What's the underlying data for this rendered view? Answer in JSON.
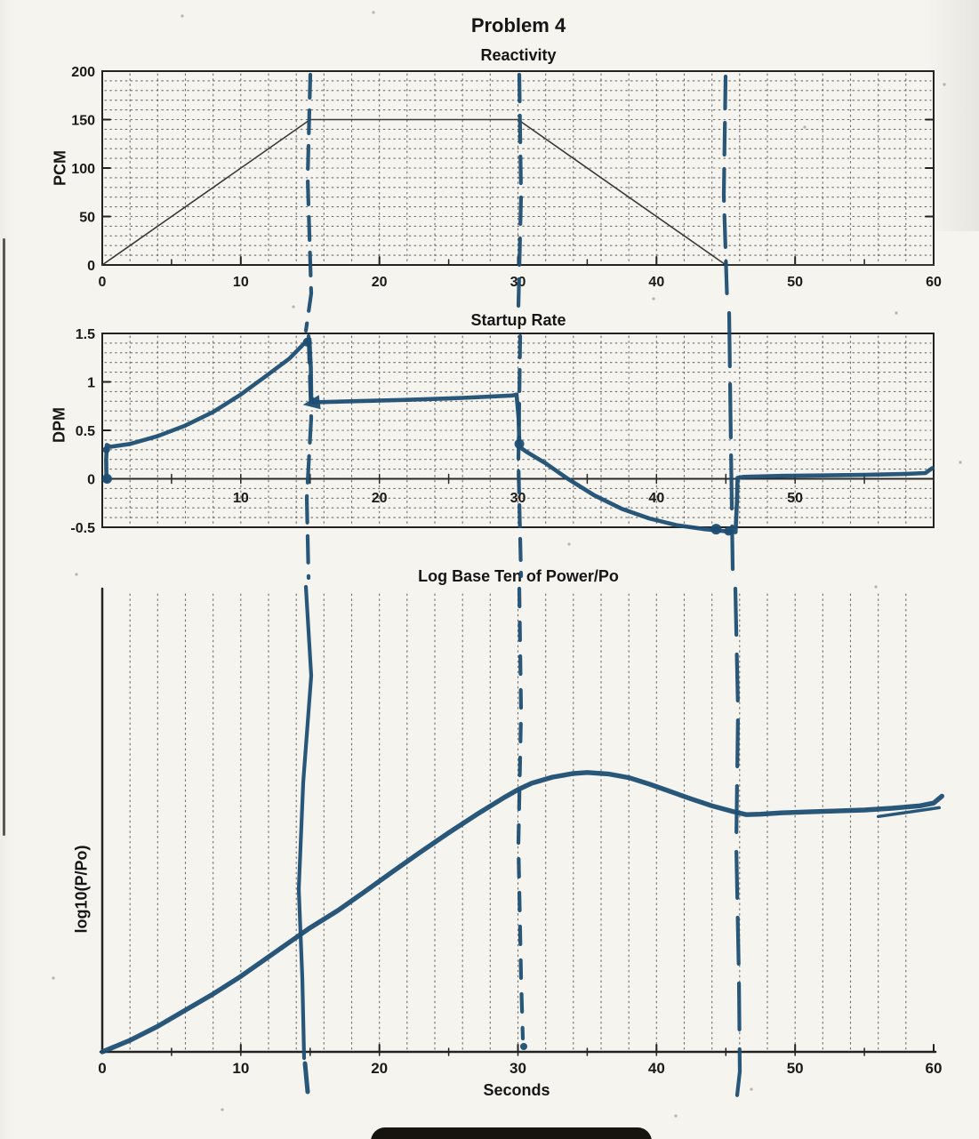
{
  "page": {
    "title": "Problem 4"
  },
  "colors": {
    "paper": "#f6f4ef",
    "print_ink": "#1f1f1f",
    "grid_dots": "#4c4c4c",
    "marker_blue": "#1d4e73",
    "footer_bar": "#17130f"
  },
  "footer": {
    "bar_visible": true
  },
  "chart_data": [
    {
      "type": "line",
      "title": "Reactivity",
      "ylabel": "PCM",
      "xlabel": "",
      "xlim": [
        0,
        60
      ],
      "ylim": [
        0,
        200
      ],
      "xticks": [
        0,
        10,
        20,
        30,
        40,
        50,
        60
      ],
      "yticks": [
        0,
        50,
        100,
        150,
        200
      ],
      "grid": "dotted: vertical every 2 s, horizontal every 10 PCM; full box frame",
      "series": [
        {
          "name": "reactivity-ramp-printed",
          "style": "thin printed black line",
          "x": [
            0,
            15,
            30,
            45,
            60
          ],
          "y": [
            0,
            150,
            150,
            0,
            0
          ]
        }
      ],
      "annotations": {
        "handdrawn_vlines_sec": [
          15,
          30,
          45
        ]
      }
    },
    {
      "type": "line",
      "title": "Startup Rate",
      "ylabel": "DPM",
      "xlabel": "",
      "xlim": [
        0,
        60
      ],
      "ylim": [
        -0.5,
        1.5
      ],
      "xticks_inside": [
        10,
        20,
        30,
        40,
        50
      ],
      "yticks": [
        -0.5,
        0,
        0.5,
        1,
        1.5
      ],
      "ytick_labels": [
        "-0.5",
        "0",
        "0.5",
        "1",
        "1.5"
      ],
      "zero_axis": true,
      "grid": "dotted: vertical every 2 s, horizontal every 0.1 DPM; full box frame; solid axis at DPM=0",
      "series": [
        {
          "name": "startup-rate-handdrawn",
          "style": "thick blue marker, hand drawn",
          "points": [
            [
              0.3,
              -0.02
            ],
            [
              0.28,
              0.2
            ],
            [
              0.33,
              0.35
            ],
            [
              0.6,
              0.33
            ],
            [
              2,
              0.36
            ],
            [
              4,
              0.44
            ],
            [
              6,
              0.55
            ],
            [
              8,
              0.69
            ],
            [
              10,
              0.87
            ],
            [
              12,
              1.08
            ],
            [
              13.5,
              1.24
            ],
            [
              14.6,
              1.4
            ],
            [
              14.95,
              1.44
            ],
            [
              15.05,
              1.15
            ],
            [
              15.08,
              0.84
            ],
            [
              15.3,
              0.79
            ],
            [
              18,
              0.8
            ],
            [
              22,
              0.815
            ],
            [
              26,
              0.835
            ],
            [
              29.6,
              0.86
            ],
            [
              29.9,
              0.87
            ],
            [
              30.05,
              0.62
            ],
            [
              30.1,
              0.33
            ],
            [
              30.6,
              0.28
            ],
            [
              32,
              0.16
            ],
            [
              33.6,
              0.0
            ],
            [
              35.5,
              -0.17
            ],
            [
              37.5,
              -0.31
            ],
            [
              39.5,
              -0.41
            ],
            [
              41.5,
              -0.48
            ],
            [
              43.5,
              -0.52
            ],
            [
              45.3,
              -0.545
            ],
            [
              45.7,
              -0.55
            ],
            [
              45.8,
              -0.25
            ],
            [
              45.85,
              0.01
            ],
            [
              46.3,
              0.02
            ],
            [
              49,
              0.03
            ],
            [
              52,
              0.035
            ],
            [
              55,
              0.04
            ],
            [
              58,
              0.05
            ],
            [
              59.4,
              0.06
            ],
            [
              59.9,
              0.11
            ]
          ]
        }
      ],
      "annotations": {
        "handdrawn_vlines_sec": [
          15,
          30,
          46
        ],
        "dots_t_v_r": [
          [
            0.35,
            0.0,
            5.5
          ],
          [
            0.3,
            0.3,
            4
          ],
          [
            14.8,
            1.41,
            5
          ],
          [
            30.1,
            0.36,
            5.5
          ],
          [
            44.3,
            -0.52,
            6
          ],
          [
            45.2,
            -0.54,
            5
          ]
        ],
        "arrowhead_left_at": [
          15.25,
          0.8
        ]
      }
    },
    {
      "type": "line",
      "title": "Log Base Ten of Power/Po",
      "ylabel": "log10(P/Po)",
      "xlabel": "Seconds",
      "xlim": [
        0,
        60
      ],
      "xticks": [
        0,
        10,
        20,
        30,
        40,
        50,
        60
      ],
      "y_axis_unlabeled": true,
      "grid": "vertical dotted gridlines only, every 2 s; only left and bottom axes drawn",
      "series": [
        {
          "name": "log-power-handdrawn",
          "style": "thick blue marker, hand drawn",
          "note": "no printed y scale; values are fraction of plot height above the x-axis",
          "points_rel": [
            [
              0,
              0.0
            ],
            [
              2,
              0.025
            ],
            [
              4,
              0.055
            ],
            [
              6,
              0.09
            ],
            [
              8,
              0.125
            ],
            [
              10,
              0.163
            ],
            [
              12,
              0.205
            ],
            [
              14,
              0.247
            ],
            [
              15,
              0.268
            ],
            [
              17,
              0.305
            ],
            [
              19,
              0.347
            ],
            [
              21,
              0.39
            ],
            [
              23,
              0.432
            ],
            [
              25,
              0.473
            ],
            [
              27,
              0.512
            ],
            [
              29,
              0.549
            ],
            [
              30,
              0.566
            ],
            [
              31,
              0.58
            ],
            [
              32.5,
              0.593
            ],
            [
              34,
              0.601
            ],
            [
              35,
              0.603
            ],
            [
              36.5,
              0.6
            ],
            [
              38,
              0.592
            ],
            [
              39.5,
              0.578
            ],
            [
              41,
              0.562
            ],
            [
              42.5,
              0.546
            ],
            [
              44,
              0.531
            ],
            [
              45.5,
              0.519
            ],
            [
              46.5,
              0.512
            ],
            [
              47.5,
              0.513
            ],
            [
              49,
              0.516
            ],
            [
              51,
              0.518
            ],
            [
              53,
              0.52
            ],
            [
              55,
              0.522
            ],
            [
              57,
              0.526
            ],
            [
              59,
              0.531
            ],
            [
              60,
              0.537
            ],
            [
              60.6,
              0.552
            ]
          ],
          "extra_stroke_rel": [
            [
              56,
              0.508
            ],
            [
              60.4,
              0.527
            ]
          ]
        }
      ],
      "annotations": {
        "handdrawn_vlines_sec": [
          15,
          30,
          46
        ]
      }
    }
  ],
  "handdrawn_marks": {
    "vline_15s": {
      "seg_chart1_pts": [
        [
          349,
          84
        ],
        [
          346,
          200
        ],
        [
          350,
          330
        ],
        [
          344,
          372
        ]
      ],
      "seg_chart1_dash": "26 14",
      "seg_chart2_pts": [
        [
          347,
          378
        ],
        [
          350,
          470
        ],
        [
          345,
          560
        ],
        [
          347,
          650
        ]
      ],
      "seg_chart2_dash": "30 15",
      "seg_chart3_pts": [
        [
          344,
          660
        ],
        [
          350,
          760
        ],
        [
          341,
          880
        ],
        [
          336,
          1000
        ],
        [
          340,
          1100
        ],
        [
          342,
          1190
        ]
      ],
      "seg_chart3_dash": "",
      "below_axis_pts": [
        [
          343,
          1196
        ],
        [
          346,
          1228
        ]
      ]
    },
    "vline_30s": {
      "seg_chart1_pts": [
        [
          584,
          84
        ],
        [
          586,
          220
        ],
        [
          583,
          345
        ]
      ],
      "seg_chart1_dash": "30 16",
      "seg_chart2_pts": [
        [
          585,
          378
        ],
        [
          583,
          520
        ],
        [
          586,
          648
        ]
      ],
      "seg_chart2_dash": "24 14",
      "seg_chart3_pts": [
        [
          584,
          662
        ],
        [
          586,
          800
        ],
        [
          583,
          950
        ],
        [
          586,
          1100
        ],
        [
          588,
          1168
        ]
      ],
      "seg_chart3_dash": "20 18",
      "end_dot": [
        589,
        1177,
        4
      ]
    },
    "vline_46s": {
      "seg_chart1_pts": [
        [
          816,
          86
        ],
        [
          814,
          220
        ],
        [
          818,
          345
        ]
      ],
      "seg_chart1_dash": "36 16",
      "seg_chart2_pts": [
        [
          820,
          352
        ],
        [
          822,
          500
        ],
        [
          824,
          640
        ]
      ],
      "seg_chart2_dash": "60 20",
      "seg_chart3_pts": [
        [
          827,
          662
        ],
        [
          830,
          800
        ],
        [
          828,
          950
        ],
        [
          831,
          1100
        ],
        [
          832,
          1205
        ],
        [
          829,
          1232
        ]
      ],
      "seg_chart3_dash": "52 22"
    }
  }
}
